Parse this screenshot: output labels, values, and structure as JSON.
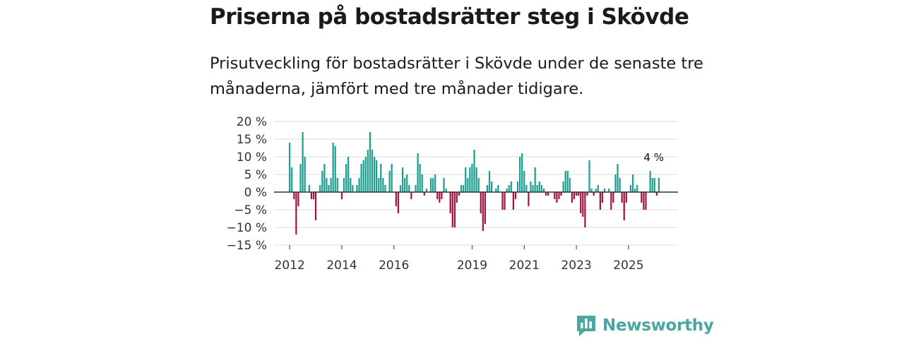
{
  "header": {
    "title": "Priserna på bostadsrätter steg i Skövde",
    "subtitle": "Prisutveckling för bostadsrätter i Skövde under de senaste tre månaderna, jämfört med tre månader tidigare."
  },
  "brand": {
    "name": "Newsworthy",
    "icon": "newsworthy-logo-icon",
    "color": "#4aa79f"
  },
  "chart_data": {
    "type": "bar",
    "title": "Priserna på bostadsrätter steg i Skövde",
    "xlabel": "",
    "ylabel": "",
    "ylim": [
      -15,
      20
    ],
    "xlim": [
      2011.4,
      2026.9
    ],
    "y_ticks": [
      20,
      15,
      10,
      5,
      0,
      -5,
      -10,
      -15
    ],
    "y_tick_labels": [
      "20 %",
      "15 %",
      "10 %",
      "5 %",
      "0 %",
      "−5 %",
      "−10 %",
      "−15 %"
    ],
    "x_ticks": [
      2012,
      2014,
      2016,
      2019,
      2021,
      2023,
      2025
    ],
    "x_tick_labels": [
      "2012",
      "2014",
      "2016",
      "2019",
      "2021",
      "2023",
      "2025"
    ],
    "grid": true,
    "colors": {
      "positive": "#1a9e8f",
      "negative": "#a4133c",
      "zero_line": "#333333",
      "grid": "#dddddd"
    },
    "annotation": {
      "text": "4 %",
      "value": 4,
      "x": 2025.97
    },
    "start_year": 2012,
    "months_per_bar": 1,
    "values": [
      14,
      7,
      -2,
      -12,
      -4,
      8,
      17,
      10,
      0,
      2,
      -2,
      -2,
      -8,
      0,
      2,
      6,
      8,
      4,
      2,
      4,
      14,
      13,
      4,
      0,
      -2,
      4,
      8,
      10,
      4,
      2,
      0,
      2,
      4,
      8,
      9,
      10,
      12,
      17,
      12,
      10,
      9,
      4,
      8,
      4,
      2,
      0,
      6,
      8,
      0,
      -4,
      -6,
      2,
      7,
      4,
      5,
      2,
      -2,
      0,
      2,
      11,
      8,
      5,
      -1,
      1,
      0,
      4,
      4,
      5,
      -2,
      -3,
      -2,
      4,
      1,
      0,
      -6,
      -10,
      -10,
      -3,
      -1,
      2,
      2,
      7,
      4,
      7,
      8,
      12,
      7,
      4,
      -6,
      -11,
      -9,
      2,
      6,
      3,
      0,
      1,
      2,
      0,
      -5,
      -5,
      1,
      2,
      3,
      -5,
      -2,
      3,
      10,
      11,
      6,
      2,
      -4,
      3,
      2,
      7,
      2,
      3,
      2,
      1,
      -1,
      -1,
      0,
      0,
      -2,
      -3,
      -2,
      -1,
      3,
      6,
      6,
      4,
      -3,
      -2,
      -1,
      -1,
      -6,
      -7,
      -10,
      -1,
      9,
      1,
      -1,
      1,
      2,
      -5,
      -3,
      1,
      0,
      1,
      -5,
      -3,
      5,
      8,
      4,
      -3,
      -8,
      -3,
      0,
      2,
      5,
      1,
      2,
      0,
      -3,
      -5,
      -5,
      0,
      6,
      4,
      4,
      -1,
      4
    ]
  }
}
